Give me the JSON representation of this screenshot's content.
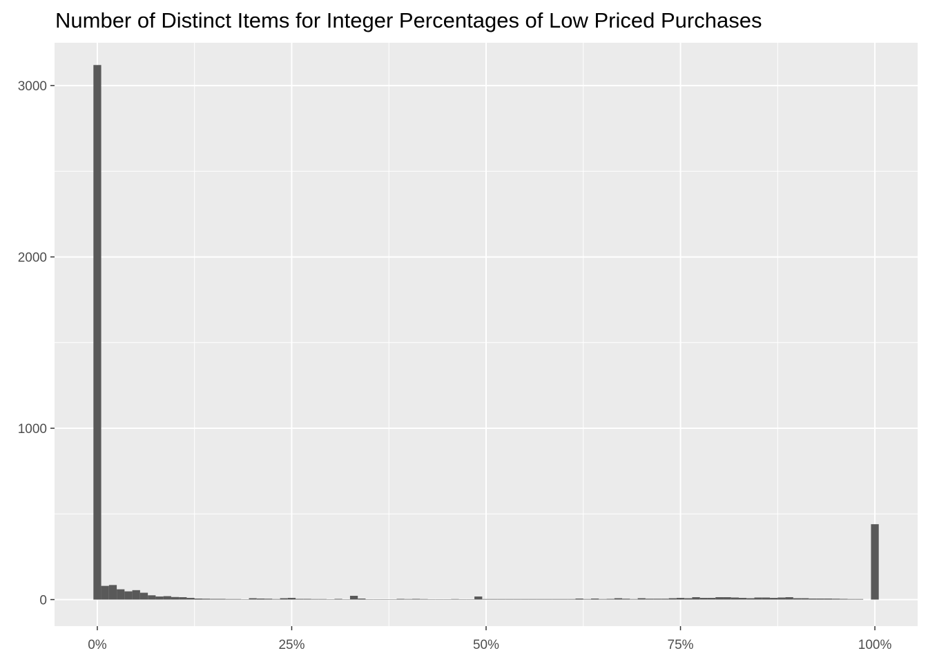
{
  "chart_data": {
    "type": "bar",
    "title": "Number of Distinct Items for Integer Percentages of Low Priced Purchases",
    "xlabel": "",
    "ylabel": "",
    "x_tick_labels": [
      "0%",
      "25%",
      "50%",
      "75%",
      "100%"
    ],
    "y_tick_labels": [
      "0",
      "1000",
      "2000",
      "3000"
    ],
    "xlim": [
      -5.5,
      105.5
    ],
    "ylim": [
      -155,
      3250
    ],
    "grid": true,
    "legend": "none",
    "bar_color": "#595959",
    "panel_color": "#ebebeb",
    "grid_color": "#ffffff",
    "x": [
      0,
      1,
      2,
      3,
      4,
      5,
      6,
      7,
      8,
      9,
      10,
      11,
      12,
      13,
      14,
      15,
      16,
      17,
      18,
      19,
      20,
      21,
      22,
      23,
      24,
      25,
      26,
      27,
      28,
      29,
      30,
      31,
      32,
      33,
      34,
      35,
      36,
      37,
      38,
      39,
      40,
      41,
      42,
      43,
      44,
      45,
      46,
      47,
      48,
      49,
      50,
      51,
      52,
      53,
      54,
      55,
      56,
      57,
      58,
      59,
      60,
      61,
      62,
      63,
      64,
      65,
      66,
      67,
      68,
      69,
      70,
      71,
      72,
      73,
      74,
      75,
      76,
      77,
      78,
      79,
      80,
      81,
      82,
      83,
      84,
      85,
      86,
      87,
      88,
      89,
      90,
      91,
      92,
      93,
      94,
      95,
      96,
      97,
      98,
      99,
      100
    ],
    "values": [
      3120,
      80,
      85,
      60,
      48,
      55,
      40,
      25,
      18,
      20,
      15,
      14,
      10,
      6,
      5,
      4,
      4,
      3,
      3,
      2,
      8,
      6,
      5,
      3,
      8,
      10,
      4,
      4,
      3,
      3,
      2,
      4,
      2,
      22,
      6,
      2,
      2,
      2,
      2,
      4,
      3,
      4,
      3,
      2,
      2,
      2,
      3,
      2,
      2,
      18,
      3,
      3,
      3,
      3,
      3,
      3,
      3,
      3,
      3,
      3,
      3,
      3,
      6,
      3,
      6,
      3,
      4,
      8,
      5,
      3,
      8,
      5,
      5,
      5,
      8,
      10,
      8,
      14,
      10,
      10,
      14,
      14,
      12,
      10,
      8,
      12,
      12,
      10,
      12,
      14,
      8,
      8,
      6,
      6,
      6,
      5,
      4,
      3,
      3,
      0,
      440
    ]
  }
}
